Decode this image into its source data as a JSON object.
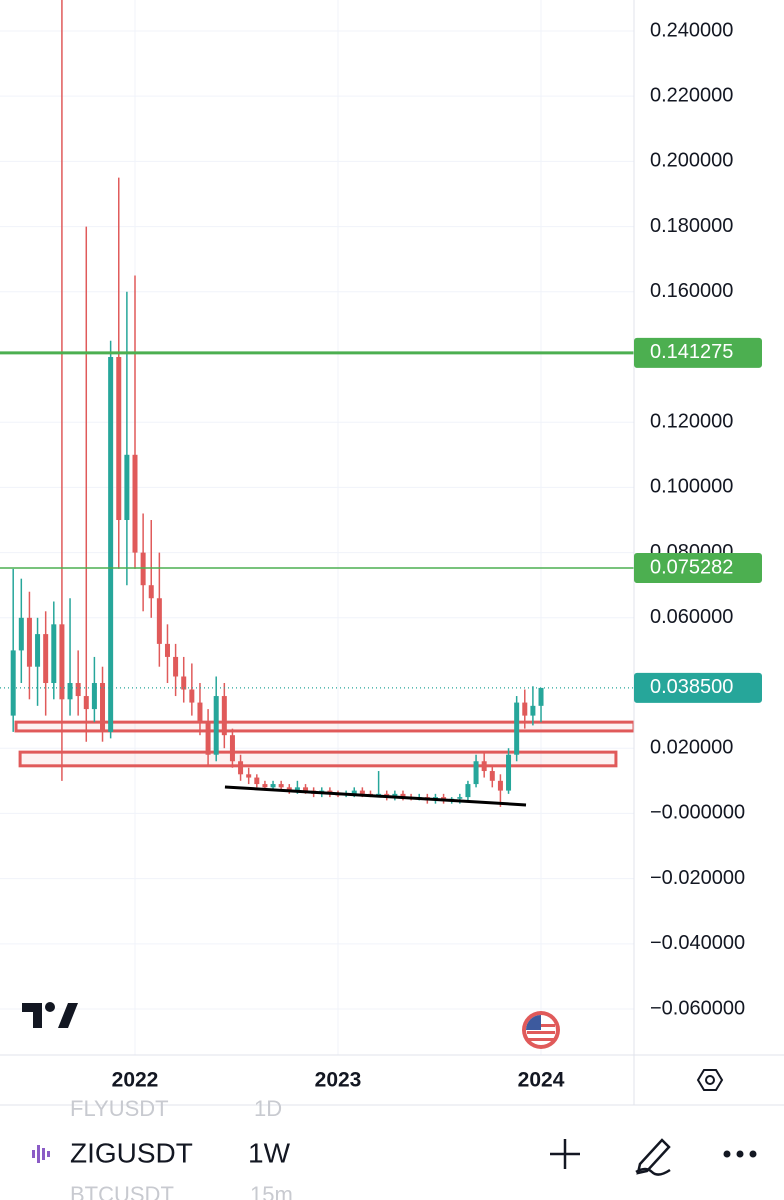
{
  "chart_data": {
    "type": "candlestick",
    "up_color": "#26a69a",
    "down_color": "#e05a5a",
    "grid": true,
    "xlim": [
      2021.335,
      2024.458
    ],
    "xticks": [
      {
        "value": 2022,
        "label": "2022"
      },
      {
        "value": 2023,
        "label": "2023"
      },
      {
        "value": 2024,
        "label": "2024"
      }
    ],
    "ylim": [
      -0.0741,
      0.2495
    ],
    "yticks": [
      {
        "value": 0.24,
        "label": "0.240000"
      },
      {
        "value": 0.22,
        "label": "0.220000"
      },
      {
        "value": 0.2,
        "label": "0.200000"
      },
      {
        "value": 0.18,
        "label": "0.180000"
      },
      {
        "value": 0.16,
        "label": "0.160000"
      },
      {
        "value": 0.12,
        "label": "0.120000"
      },
      {
        "value": 0.1,
        "label": "0.100000"
      },
      {
        "value": 0.08,
        "label": "0.080000"
      },
      {
        "value": 0.06,
        "label": "0.060000"
      },
      {
        "value": 0.02,
        "label": "0.020000"
      },
      {
        "value": 0,
        "label": "−0.000000"
      },
      {
        "value": -0.02,
        "label": "−0.020000"
      },
      {
        "value": -0.04,
        "label": "−0.040000"
      },
      {
        "value": -0.06,
        "label": "−0.060000"
      }
    ],
    "x": [
      2021.4,
      2021.44,
      2021.48,
      2021.52,
      2021.56,
      2021.6,
      2021.64,
      2021.68,
      2021.72,
      2021.76,
      2021.8,
      2021.84,
      2021.88,
      2021.92,
      2021.96,
      2022.0,
      2022.04,
      2022.08,
      2022.12,
      2022.16,
      2022.2,
      2022.24,
      2022.28,
      2022.32,
      2022.36,
      2022.4,
      2022.44,
      2022.48,
      2022.52,
      2022.56,
      2022.6,
      2022.64,
      2022.68,
      2022.72,
      2022.76,
      2022.8,
      2022.84,
      2022.88,
      2022.92,
      2022.96,
      2023.0,
      2023.04,
      2023.08,
      2023.12,
      2023.16,
      2023.2,
      2023.24,
      2023.28,
      2023.32,
      2023.36,
      2023.4,
      2023.44,
      2023.48,
      2023.52,
      2023.56,
      2023.6,
      2023.64,
      2023.68,
      2023.72,
      2023.76,
      2023.8,
      2023.84,
      2023.88,
      2023.92,
      2023.96,
      2024.0
    ],
    "open": [
      0.03,
      0.05,
      0.06,
      0.045,
      0.055,
      0.04,
      0.058,
      0.035,
      0.04,
      0.036,
      0.032,
      0.04,
      0.025,
      0.14,
      0.09,
      0.11,
      0.08,
      0.07,
      0.066,
      0.052,
      0.048,
      0.042,
      0.038,
      0.034,
      0.028,
      0.018,
      0.036,
      0.024,
      0.016,
      0.012,
      0.011,
      0.009,
      0.008,
      0.009,
      0.008,
      0.007,
      0.008,
      0.007,
      0.006,
      0.007,
      0.006,
      0.0055,
      0.006,
      0.007,
      0.006,
      0.0055,
      0.006,
      0.005,
      0.006,
      0.005,
      0.0045,
      0.005,
      0.004,
      0.005,
      0.004,
      0.0045,
      0.005,
      0.009,
      0.016,
      0.013,
      0.01,
      0.007,
      0.018,
      0.034,
      0.03,
      0.033
    ],
    "high": [
      0.075,
      0.072,
      0.068,
      0.06,
      0.062,
      0.065,
      0.25,
      0.066,
      0.05,
      0.18,
      0.048,
      0.045,
      0.145,
      0.195,
      0.16,
      0.165,
      0.092,
      0.09,
      0.08,
      0.058,
      0.052,
      0.048,
      0.046,
      0.04,
      0.032,
      0.042,
      0.04,
      0.026,
      0.018,
      0.014,
      0.012,
      0.01,
      0.01,
      0.01,
      0.009,
      0.01,
      0.009,
      0.008,
      0.008,
      0.008,
      0.007,
      0.007,
      0.008,
      0.008,
      0.007,
      0.013,
      0.007,
      0.007,
      0.007,
      0.006,
      0.006,
      0.006,
      0.006,
      0.006,
      0.005,
      0.006,
      0.01,
      0.018,
      0.019,
      0.015,
      0.012,
      0.02,
      0.036,
      0.038,
      0.039,
      0.0385
    ],
    "low": [
      0.025,
      0.04,
      0.035,
      0.033,
      0.03,
      0.035,
      0.01,
      0.03,
      0.03,
      0.022,
      0.028,
      0.022,
      0.023,
      0.075,
      0.07,
      0.075,
      0.062,
      0.06,
      0.045,
      0.04,
      0.036,
      0.034,
      0.03,
      0.024,
      0.015,
      0.016,
      0.02,
      0.014,
      0.01,
      0.009,
      0.008,
      0.007,
      0.007,
      0.007,
      0.006,
      0.006,
      0.006,
      0.005,
      0.005,
      0.005,
      0.005,
      0.005,
      0.005,
      0.005,
      0.005,
      0.005,
      0.004,
      0.004,
      0.004,
      0.004,
      0.004,
      0.003,
      0.003,
      0.003,
      0.003,
      0.003,
      0.004,
      0.008,
      0.011,
      0.008,
      0.002,
      0.006,
      0.016,
      0.026,
      0.027,
      0.028
    ],
    "close": [
      0.05,
      0.06,
      0.045,
      0.055,
      0.04,
      0.058,
      0.035,
      0.04,
      0.036,
      0.032,
      0.04,
      0.025,
      0.14,
      0.09,
      0.11,
      0.08,
      0.07,
      0.066,
      0.052,
      0.048,
      0.042,
      0.038,
      0.034,
      0.028,
      0.018,
      0.036,
      0.024,
      0.016,
      0.012,
      0.011,
      0.009,
      0.008,
      0.009,
      0.008,
      0.007,
      0.008,
      0.007,
      0.006,
      0.007,
      0.006,
      0.0055,
      0.006,
      0.007,
      0.006,
      0.0055,
      0.006,
      0.005,
      0.006,
      0.005,
      0.0045,
      0.005,
      0.004,
      0.005,
      0.004,
      0.0045,
      0.005,
      0.009,
      0.016,
      0.013,
      0.01,
      0.007,
      0.018,
      0.034,
      0.03,
      0.033,
      0.0385
    ],
    "price_lines": [
      {
        "value": 0.141275,
        "label": "0.141275",
        "color": "#4caf50",
        "width": 3
      },
      {
        "value": 0.075282,
        "label": "0.075282",
        "color": "#4caf50",
        "width": 1.5
      }
    ],
    "last_price": {
      "value": 0.0385,
      "label": "0.038500",
      "color": "#26a69a"
    },
    "zones": [
      {
        "x": [
          2021.414,
          2024.458
        ],
        "y": [
          0.0253,
          0.028
        ],
        "color": "#e05a5a"
      },
      {
        "x": [
          2021.434,
          2024.369
        ],
        "y": [
          0.0146,
          0.0188
        ],
        "color": "#e05a5a"
      }
    ],
    "trendline": {
      "x": [
        2022.443,
        2023.926
      ],
      "y": [
        0.0081,
        0.0026
      ],
      "color": "#000000"
    }
  },
  "ui": {
    "symbol": "ZIGUSDT",
    "interval": "1W",
    "prev_symbol": "FLYUSDT",
    "prev_interval": "1D",
    "next_symbol": "BTCUSDT",
    "next_interval": "15m"
  }
}
